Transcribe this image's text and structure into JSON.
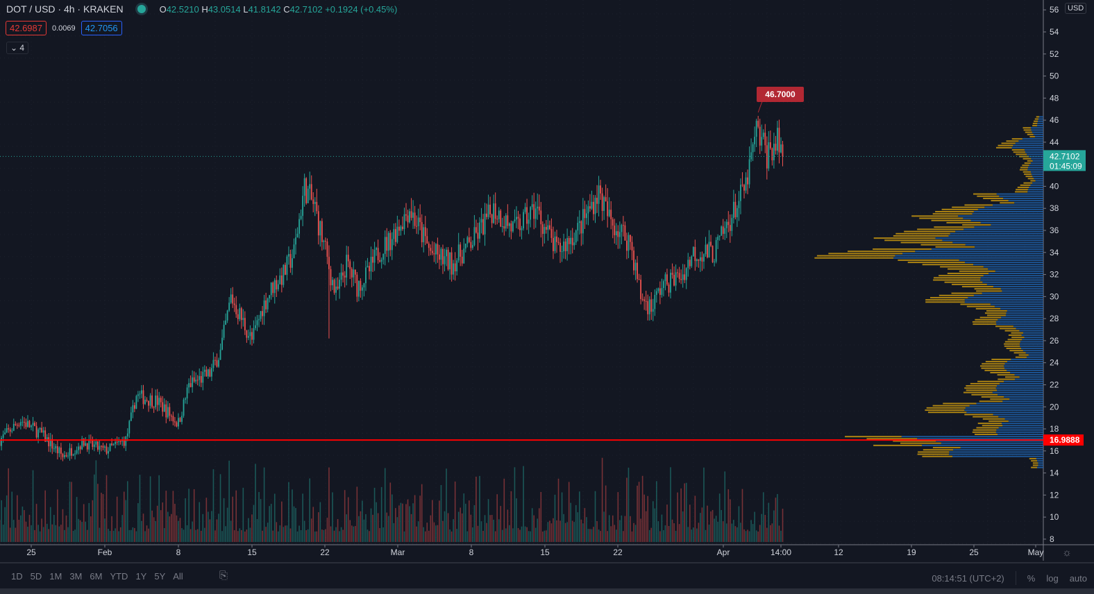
{
  "header": {
    "symbol": "DOT / USD · 4h · KRAKEN",
    "open_label": "O",
    "open": "42.5210",
    "high_label": "H",
    "high": "43.0514",
    "low_label": "L",
    "low": "41.8142",
    "close_label": "C",
    "close": "42.7102",
    "change": "+0.1924 (+0.45%)",
    "bid": "42.6987",
    "spread": "0.0069",
    "ask": "42.7056",
    "indicators_toggle": "4"
  },
  "axis": {
    "currency": "USD",
    "last_price": "42.7102",
    "countdown": "01:45:09",
    "hline_price": "16.9888",
    "high_marker": "46.7000"
  },
  "toolbar": {
    "ranges": [
      "1D",
      "5D",
      "1M",
      "3M",
      "6M",
      "YTD",
      "1Y",
      "5Y",
      "All"
    ],
    "clock": "08:14:51 (UTC+2)",
    "percent": "%",
    "log": "log",
    "auto": "auto"
  },
  "colors": {
    "up": "#26a69a",
    "down": "#ef5350",
    "hline": "#ff0000",
    "profile_up": "#1e5fa8",
    "profile_down": "#c8960f",
    "background": "#131722"
  },
  "chart_data": {
    "type": "candlestick",
    "interval": "4h",
    "ylim": [
      8,
      56
    ],
    "yticks": [
      8,
      10,
      12,
      14,
      16,
      18,
      20,
      22,
      24,
      26,
      28,
      30,
      32,
      34,
      36,
      38,
      40,
      42,
      44,
      46,
      48,
      50,
      52,
      54,
      56
    ],
    "xticks": [
      "25",
      "Feb",
      "8",
      "15",
      "22",
      "Mar",
      "8",
      "15",
      "22",
      "Apr",
      "14:00",
      "12",
      "19",
      "25",
      "May"
    ],
    "price_path": [
      [
        "2021-01-22",
        17
      ],
      [
        "2021-01-24",
        18.8
      ],
      [
        "2021-01-26",
        17.5
      ],
      [
        "2021-01-28",
        15.5
      ],
      [
        "2021-01-30",
        16.8
      ],
      [
        "2021-02-01",
        16
      ],
      [
        "2021-02-03",
        17
      ],
      [
        "2021-02-04",
        21
      ],
      [
        "2021-02-06",
        20.5
      ],
      [
        "2021-02-08",
        18.5
      ],
      [
        "2021-02-09",
        22
      ],
      [
        "2021-02-11",
        23
      ],
      [
        "2021-02-12",
        25
      ],
      [
        "2021-02-13",
        30
      ],
      [
        "2021-02-14",
        28
      ],
      [
        "2021-02-15",
        26
      ],
      [
        "2021-02-16",
        29
      ],
      [
        "2021-02-17",
        31
      ],
      [
        "2021-02-18",
        32
      ],
      [
        "2021-02-19",
        34
      ],
      [
        "2021-02-20",
        40
      ],
      [
        "2021-02-21",
        38
      ],
      [
        "2021-02-22",
        34
      ],
      [
        "2021-02-23",
        30
      ],
      [
        "2021-02-24",
        33
      ],
      [
        "2021-02-25",
        31
      ],
      [
        "2021-02-26",
        32
      ],
      [
        "2021-02-27",
        34
      ],
      [
        "2021-02-28",
        35
      ],
      [
        "2021-03-02",
        38
      ],
      [
        "2021-03-04",
        34
      ],
      [
        "2021-03-06",
        33
      ],
      [
        "2021-03-08",
        35
      ],
      [
        "2021-03-10",
        38
      ],
      [
        "2021-03-12",
        36
      ],
      [
        "2021-03-14",
        38
      ],
      [
        "2021-03-16",
        34
      ],
      [
        "2021-03-18",
        36
      ],
      [
        "2021-03-20",
        39.5
      ],
      [
        "2021-03-21",
        37
      ],
      [
        "2021-03-23",
        35
      ],
      [
        "2021-03-24",
        30
      ],
      [
        "2021-03-25",
        29
      ],
      [
        "2021-03-26",
        31
      ],
      [
        "2021-03-28",
        32
      ],
      [
        "2021-03-29",
        34
      ],
      [
        "2021-03-31",
        34
      ],
      [
        "2021-04-01",
        36
      ],
      [
        "2021-04-02",
        38
      ],
      [
        "2021-04-03",
        40
      ],
      [
        "2021-04-04",
        45
      ],
      [
        "2021-04-05",
        43
      ],
      [
        "2021-04-06",
        44
      ],
      [
        "2021-04-06T14:00",
        42.71
      ]
    ],
    "horizontal_line": 16.9888,
    "last_price": 42.7102,
    "high": 46.7,
    "volume_profile": [
      [
        15,
        5,
        5
      ],
      [
        16,
        60,
        20
      ],
      [
        17,
        100,
        40
      ],
      [
        18,
        30,
        15
      ],
      [
        19,
        35,
        20
      ],
      [
        20,
        50,
        25
      ],
      [
        21,
        35,
        20
      ],
      [
        22,
        30,
        20
      ],
      [
        23,
        25,
        15
      ],
      [
        24,
        25,
        15
      ],
      [
        25,
        15,
        10
      ],
      [
        26,
        15,
        10
      ],
      [
        27,
        20,
        12
      ],
      [
        28,
        30,
        15
      ],
      [
        29,
        35,
        20
      ],
      [
        30,
        50,
        25
      ],
      [
        31,
        40,
        25
      ],
      [
        32,
        40,
        30
      ],
      [
        33,
        55,
        40
      ],
      [
        34,
        95,
        50
      ],
      [
        35,
        70,
        40
      ],
      [
        36,
        60,
        35
      ],
      [
        37,
        55,
        30
      ],
      [
        38,
        45,
        25
      ],
      [
        39,
        30,
        15
      ],
      [
        40,
        10,
        8
      ],
      [
        41,
        8,
        5
      ],
      [
        42,
        10,
        5
      ],
      [
        43,
        12,
        8
      ],
      [
        44,
        20,
        10
      ],
      [
        45,
        8,
        5
      ],
      [
        46,
        4,
        3
      ]
    ]
  }
}
